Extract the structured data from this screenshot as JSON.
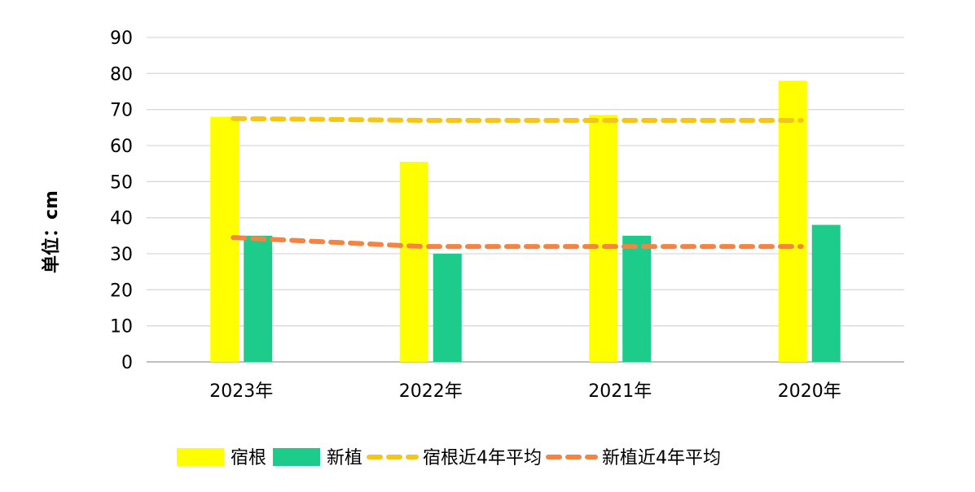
{
  "chart_data": {
    "type": "bar",
    "title": "",
    "xlabel": "",
    "ylabel": "单位：cm",
    "categories": [
      "2023年",
      "2022年",
      "2021年",
      "2020年"
    ],
    "ylim": [
      0,
      90
    ],
    "yticks": [
      0,
      10,
      20,
      30,
      40,
      50,
      60,
      70,
      80,
      90
    ],
    "grid": true,
    "legend_position": "bottom",
    "series": [
      {
        "name": "宿根",
        "kind": "bar",
        "color": "#FFFF00",
        "values": [
          68,
          55.5,
          68.5,
          78
        ]
      },
      {
        "name": "新植",
        "kind": "bar",
        "color": "#1DCB8A",
        "values": [
          35,
          30,
          35,
          38
        ]
      },
      {
        "name": "宿根近4年平均",
        "kind": "dashed-line",
        "color": "#F5C518",
        "values": [
          67.5,
          67,
          67,
          67
        ]
      },
      {
        "name": "新植近4年平均",
        "kind": "dashed-line",
        "color": "#F58442",
        "values": [
          34.5,
          32,
          32,
          32
        ]
      }
    ]
  }
}
